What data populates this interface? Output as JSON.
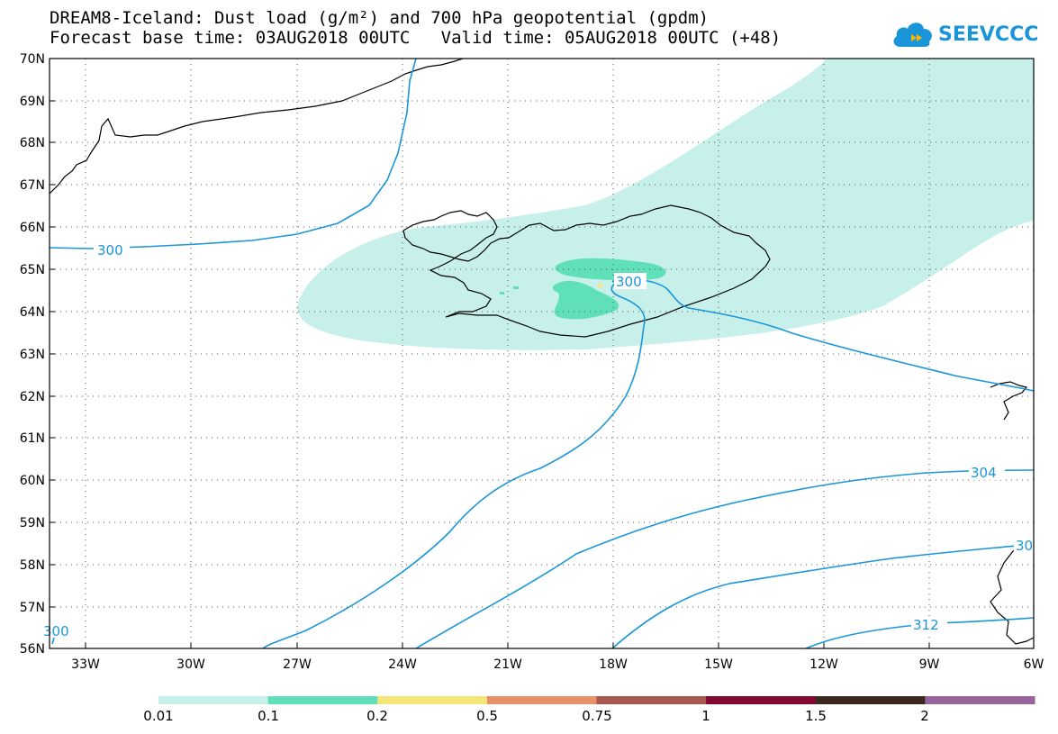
{
  "header": {
    "title_line1": "DREAM8-Iceland: Dust load (g/m²) and 700 hPa geopotential (gpdm)",
    "title_line2": "Forecast base time: 03AUG2018 00UTC   Valid time: 05AUG2018 00UTC (+48)"
  },
  "logo": {
    "text": "SEEVCCC",
    "color": "#1a96d8"
  },
  "map": {
    "lat_labels": [
      "70N",
      "69N",
      "68N",
      "67N",
      "66N",
      "65N",
      "64N",
      "63N",
      "62N",
      "61N",
      "60N",
      "59N",
      "58N",
      "57N",
      "56N"
    ],
    "lon_labels": [
      "33W",
      "30W",
      "27W",
      "24W",
      "21W",
      "18W",
      "15W",
      "12W",
      "9W",
      "6W"
    ],
    "contour_labels": [
      "300",
      "300",
      "300",
      "304",
      "30",
      "312"
    ],
    "contour_color": "#1a96d8"
  },
  "colorbar": {
    "labels": [
      "0.01",
      "0.1",
      "0.2",
      "0.5",
      "0.75",
      "1",
      "1.5",
      "2"
    ],
    "colors": [
      "#c8f0eb",
      "#5fe0b8",
      "#f5e678",
      "#e89068",
      "#a85850",
      "#820a32",
      "#3c281e",
      "#96649b"
    ]
  }
}
